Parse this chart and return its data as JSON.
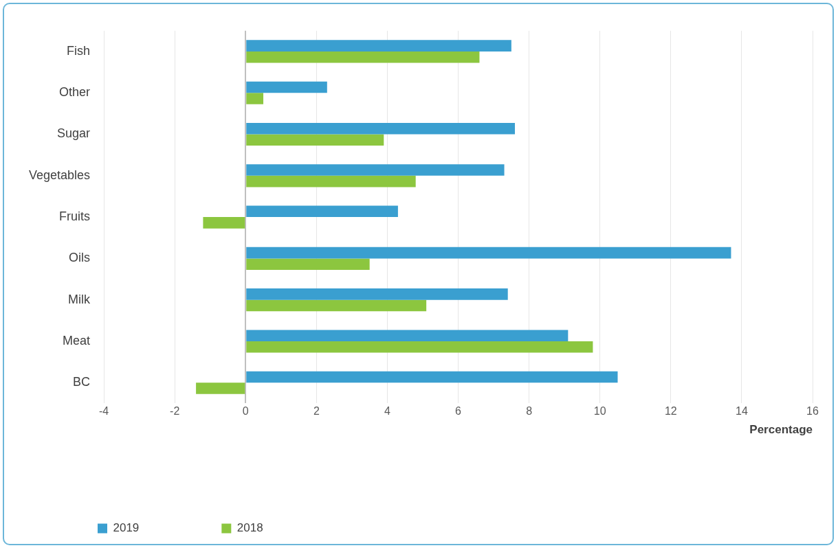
{
  "chart_data": {
    "type": "bar",
    "orientation": "horizontal",
    "xlabel": "Percentage",
    "categories": [
      "Fish",
      "Other",
      "Sugar",
      "Vegetables",
      "Fruits",
      "Oils",
      "Milk",
      "Meat",
      "BC"
    ],
    "series": [
      {
        "name": "2019",
        "color": "#3a9fd0",
        "values": [
          7.5,
          2.3,
          7.6,
          7.3,
          4.3,
          13.7,
          7.4,
          9.1,
          10.5
        ]
      },
      {
        "name": "2018",
        "color": "#8cc63f",
        "values": [
          6.6,
          0.5,
          3.9,
          4.8,
          -1.2,
          3.5,
          5.1,
          9.8,
          -1.4
        ]
      }
    ],
    "xlim": [
      -4,
      16
    ],
    "xticks": [
      -4,
      -2,
      0,
      2,
      4,
      6,
      8,
      10,
      12,
      14,
      16
    ],
    "grid": "x",
    "legend": "bottom left"
  }
}
